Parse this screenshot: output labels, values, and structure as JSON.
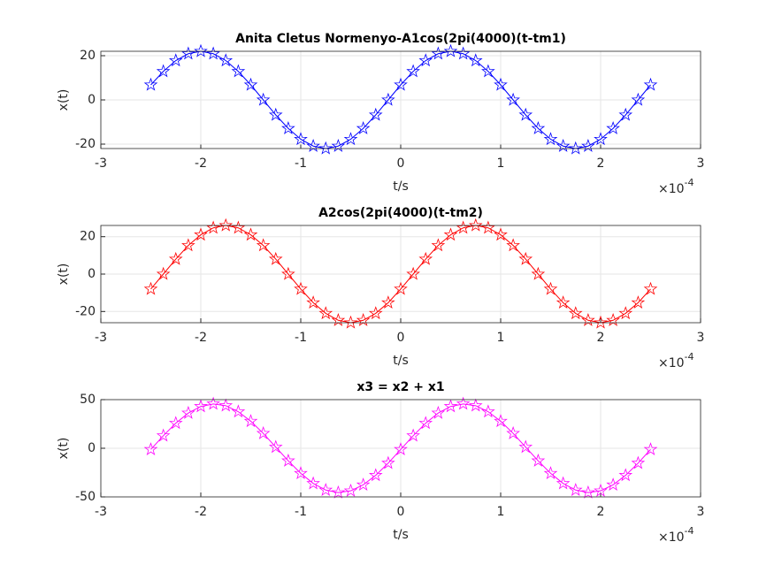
{
  "chart_data": [
    {
      "type": "line",
      "title": "Anita Cletus Normenyo-A1cos(2pi(4000)(t-tm1)",
      "xlabel": "t/s",
      "ylabel": "x(t)",
      "x_exponent": {
        "base": "×10",
        "power": "-4"
      },
      "x": [
        -2.5,
        -2.375,
        -2.25,
        -2.125,
        -2,
        -1.875,
        -1.75,
        -1.625,
        -1.5,
        -1.375,
        -1.25,
        -1.125,
        -1,
        -0.875,
        -0.75,
        -0.625,
        -0.5,
        -0.375,
        -0.25,
        -0.125,
        0,
        0.125,
        0.25,
        0.375,
        0.5,
        0.625,
        0.75,
        0.875,
        1,
        1.125,
        1.25,
        1.375,
        1.5,
        1.625,
        1.75,
        1.875,
        2,
        2.125,
        2.25,
        2.375,
        2.5
      ],
      "values": [
        6.8,
        12.9,
        17.8,
        20.9,
        22,
        20.9,
        17.8,
        12.9,
        6.8,
        0,
        -6.8,
        -12.9,
        -17.8,
        -20.9,
        -22,
        -20.9,
        -17.8,
        -12.9,
        -6.8,
        0,
        6.8,
        12.9,
        17.8,
        20.9,
        22,
        20.9,
        17.8,
        12.9,
        6.8,
        0,
        -6.8,
        -12.9,
        -17.8,
        -20.9,
        -22,
        -20.9,
        -17.8,
        -12.9,
        -6.8,
        0,
        6.8
      ],
      "color": "#0000ff",
      "marker": "star",
      "xlim": [
        -3,
        3
      ],
      "ylim": [
        -22,
        22
      ],
      "xticks": [
        -3,
        -2,
        -1,
        0,
        1,
        2,
        3
      ],
      "yticks": [
        -20,
        0,
        20
      ],
      "grid": true
    },
    {
      "type": "line",
      "title": "A2cos(2pi(4000)(t-tm2)",
      "xlabel": "t/s",
      "ylabel": "x(t)",
      "x_exponent": {
        "base": "×10",
        "power": "-4"
      },
      "x": [
        -2.5,
        -2.375,
        -2.25,
        -2.125,
        -2,
        -1.875,
        -1.75,
        -1.625,
        -1.5,
        -1.375,
        -1.25,
        -1.125,
        -1,
        -0.875,
        -0.75,
        -0.625,
        -0.5,
        -0.375,
        -0.25,
        -0.125,
        0,
        0.125,
        0.25,
        0.375,
        0.5,
        0.625,
        0.75,
        0.875,
        1,
        1.125,
        1.25,
        1.375,
        1.5,
        1.625,
        1.75,
        1.875,
        2,
        2.125,
        2.25,
        2.375,
        2.5
      ],
      "values": [
        -8,
        0,
        8,
        15.3,
        21,
        24.7,
        26,
        24.7,
        21,
        15.3,
        8,
        0,
        -8,
        -15.3,
        -21,
        -24.7,
        -26,
        -24.7,
        -21,
        -15.3,
        -8,
        0,
        8,
        15.3,
        21,
        24.7,
        26,
        24.7,
        21,
        15.3,
        8,
        0,
        -8,
        -15.3,
        -21,
        -24.7,
        -26,
        -24.7,
        -21,
        -15.3,
        -8
      ],
      "color": "#ff0000",
      "marker": "star",
      "xlim": [
        -3,
        3
      ],
      "ylim": [
        -26,
        26
      ],
      "xticks": [
        -3,
        -2,
        -1,
        0,
        1,
        2,
        3
      ],
      "yticks": [
        -20,
        0,
        20
      ],
      "grid": true
    },
    {
      "type": "line",
      "title": "x3 = x2 + x1",
      "xlabel": "t/s",
      "ylabel": "x(t)",
      "x_exponent": {
        "base": "×10",
        "power": "-4"
      },
      "x": [
        -2.5,
        -2.375,
        -2.25,
        -2.125,
        -2,
        -1.875,
        -1.75,
        -1.625,
        -1.5,
        -1.375,
        -1.25,
        -1.125,
        -1,
        -0.875,
        -0.75,
        -0.625,
        -0.5,
        -0.375,
        -0.25,
        -0.125,
        0,
        0.125,
        0.25,
        0.375,
        0.5,
        0.625,
        0.75,
        0.875,
        1,
        1.125,
        1.25,
        1.375,
        1.5,
        1.625,
        1.75,
        1.875,
        2,
        2.125,
        2.25,
        2.375,
        2.5
      ],
      "values": [
        -1.2,
        12.9,
        25.8,
        36.2,
        43,
        45.6,
        43.8,
        37.6,
        27.8,
        15.3,
        1.2,
        -12.9,
        -25.8,
        -36.2,
        -43,
        -45.6,
        -43.8,
        -37.6,
        -27.8,
        -15.3,
        -1.2,
        12.9,
        25.8,
        36.2,
        43,
        45.6,
        43.8,
        37.6,
        27.8,
        15.3,
        1.2,
        -12.9,
        -25.8,
        -36.2,
        -43,
        -45.6,
        -43.8,
        -37.6,
        -27.8,
        -15.3,
        -1.2
      ],
      "color": "#ff00ff",
      "marker": "star",
      "xlim": [
        -3,
        3
      ],
      "ylim": [
        -50,
        50
      ],
      "xticks": [
        -3,
        -2,
        -1,
        0,
        1,
        2,
        3
      ],
      "yticks": [
        -50,
        0,
        50
      ],
      "grid": true
    }
  ]
}
